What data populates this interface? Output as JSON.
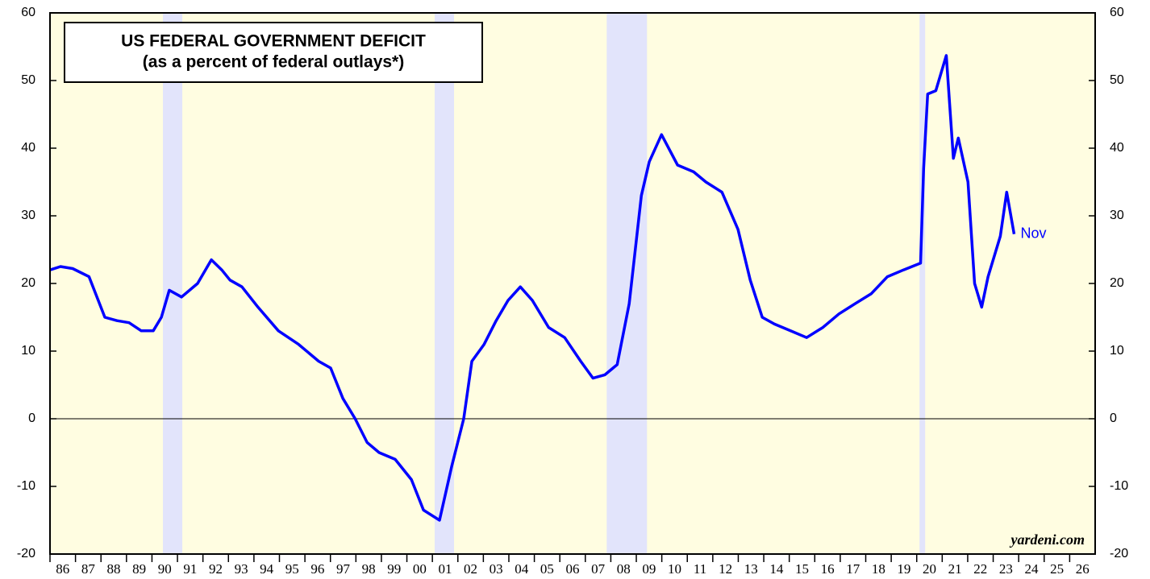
{
  "chart_data": {
    "type": "line",
    "title": "US FEDERAL GOVERNMENT DEFICIT",
    "subtitle": "(as a percent of federal outlays*)",
    "source": "yardeni.com",
    "annotation": "Nov",
    "x": [
      1986.0,
      1986.41,
      1986.89,
      1987.53,
      1988.15,
      1988.63,
      1989.1,
      1989.58,
      1990.05,
      1990.37,
      1990.68,
      1991.16,
      1991.79,
      1992.33,
      1992.74,
      1993.06,
      1993.53,
      1994.16,
      1994.96,
      1995.75,
      1996.54,
      1997.01,
      1997.49,
      1997.97,
      1998.44,
      1998.91,
      1999.54,
      2000.18,
      2000.65,
      2001.28,
      2001.76,
      2002.23,
      2002.55,
      2003.03,
      2003.5,
      2003.97,
      2004.45,
      2004.92,
      2005.56,
      2006.19,
      2006.82,
      2007.3,
      2007.77,
      2008.25,
      2008.72,
      2009.2,
      2009.51,
      2009.99,
      2010.62,
      2011.25,
      2011.73,
      2012.36,
      2012.99,
      2013.47,
      2013.94,
      2014.42,
      2015.05,
      2015.68,
      2016.32,
      2016.95,
      2017.58,
      2018.22,
      2018.85,
      2019.48,
      2020.15,
      2020.27,
      2020.43,
      2020.75,
      2021.16,
      2021.44,
      2021.63,
      2022.01,
      2022.27,
      2022.55,
      2022.8,
      2023.28,
      2023.53,
      2023.82
    ],
    "series": [
      {
        "name": "US Federal Government Deficit",
        "color": "#0000ff",
        "values": [
          22,
          22.5,
          22.2,
          21,
          15,
          14.5,
          14.2,
          13,
          13,
          15,
          19,
          18,
          20,
          23.5,
          22,
          20.5,
          19.5,
          16.5,
          13,
          11,
          8.5,
          7.5,
          3,
          0,
          -3.5,
          -5,
          -6,
          -9,
          -13.5,
          -15,
          -7,
          0,
          8.5,
          11,
          14.5,
          17.5,
          19.5,
          17.5,
          13.5,
          12,
          8.5,
          6,
          6.5,
          8,
          17,
          33,
          38,
          42,
          37.5,
          36.5,
          35,
          33.5,
          28,
          20.5,
          15,
          14,
          13,
          12,
          13.5,
          15.5,
          17,
          18.5,
          21,
          22,
          23,
          37,
          48,
          48.5,
          53.7,
          38.5,
          41.5,
          35,
          20,
          16.5,
          21,
          27,
          33.5,
          27.3
        ]
      }
    ],
    "recessions": [
      [
        1990.43,
        1991.19
      ],
      [
        2001.09,
        2001.85
      ],
      [
        2007.84,
        2009.42
      ],
      [
        2020.11,
        2020.33
      ]
    ],
    "reference_line": 0,
    "xlim": [
      1986,
      2027
    ],
    "xticks": [
      {
        "value": 1986,
        "label": "86"
      },
      {
        "value": 1987,
        "label": "87"
      },
      {
        "value": 1988,
        "label": "88"
      },
      {
        "value": 1989,
        "label": "89"
      },
      {
        "value": 1990,
        "label": "90"
      },
      {
        "value": 1991,
        "label": "91"
      },
      {
        "value": 1992,
        "label": "92"
      },
      {
        "value": 1993,
        "label": "93"
      },
      {
        "value": 1994,
        "label": "94"
      },
      {
        "value": 1995,
        "label": "95"
      },
      {
        "value": 1996,
        "label": "96"
      },
      {
        "value": 1997,
        "label": "97"
      },
      {
        "value": 1998,
        "label": "98"
      },
      {
        "value": 1999,
        "label": "99"
      },
      {
        "value": 2000,
        "label": "00"
      },
      {
        "value": 2001,
        "label": "01"
      },
      {
        "value": 2002,
        "label": "02"
      },
      {
        "value": 2003,
        "label": "03"
      },
      {
        "value": 2004,
        "label": "04"
      },
      {
        "value": 2005,
        "label": "05"
      },
      {
        "value": 2006,
        "label": "06"
      },
      {
        "value": 2007,
        "label": "07"
      },
      {
        "value": 2008,
        "label": "08"
      },
      {
        "value": 2009,
        "label": "09"
      },
      {
        "value": 2010,
        "label": "10"
      },
      {
        "value": 2011,
        "label": "11"
      },
      {
        "value": 2012,
        "label": "12"
      },
      {
        "value": 2013,
        "label": "13"
      },
      {
        "value": 2014,
        "label": "14"
      },
      {
        "value": 2015,
        "label": "15"
      },
      {
        "value": 2016,
        "label": "16"
      },
      {
        "value": 2017,
        "label": "17"
      },
      {
        "value": 2018,
        "label": "18"
      },
      {
        "value": 2019,
        "label": "19"
      },
      {
        "value": 2020,
        "label": "20"
      },
      {
        "value": 2021,
        "label": "21"
      },
      {
        "value": 2022,
        "label": "22"
      },
      {
        "value": 2023,
        "label": "23"
      },
      {
        "value": 2024,
        "label": "24"
      },
      {
        "value": 2025,
        "label": "25"
      },
      {
        "value": 2026,
        "label": "26"
      }
    ],
    "ylim": [
      -20,
      60
    ],
    "yticks": [
      -20,
      -10,
      0,
      10,
      20,
      30,
      40,
      50,
      60
    ]
  }
}
